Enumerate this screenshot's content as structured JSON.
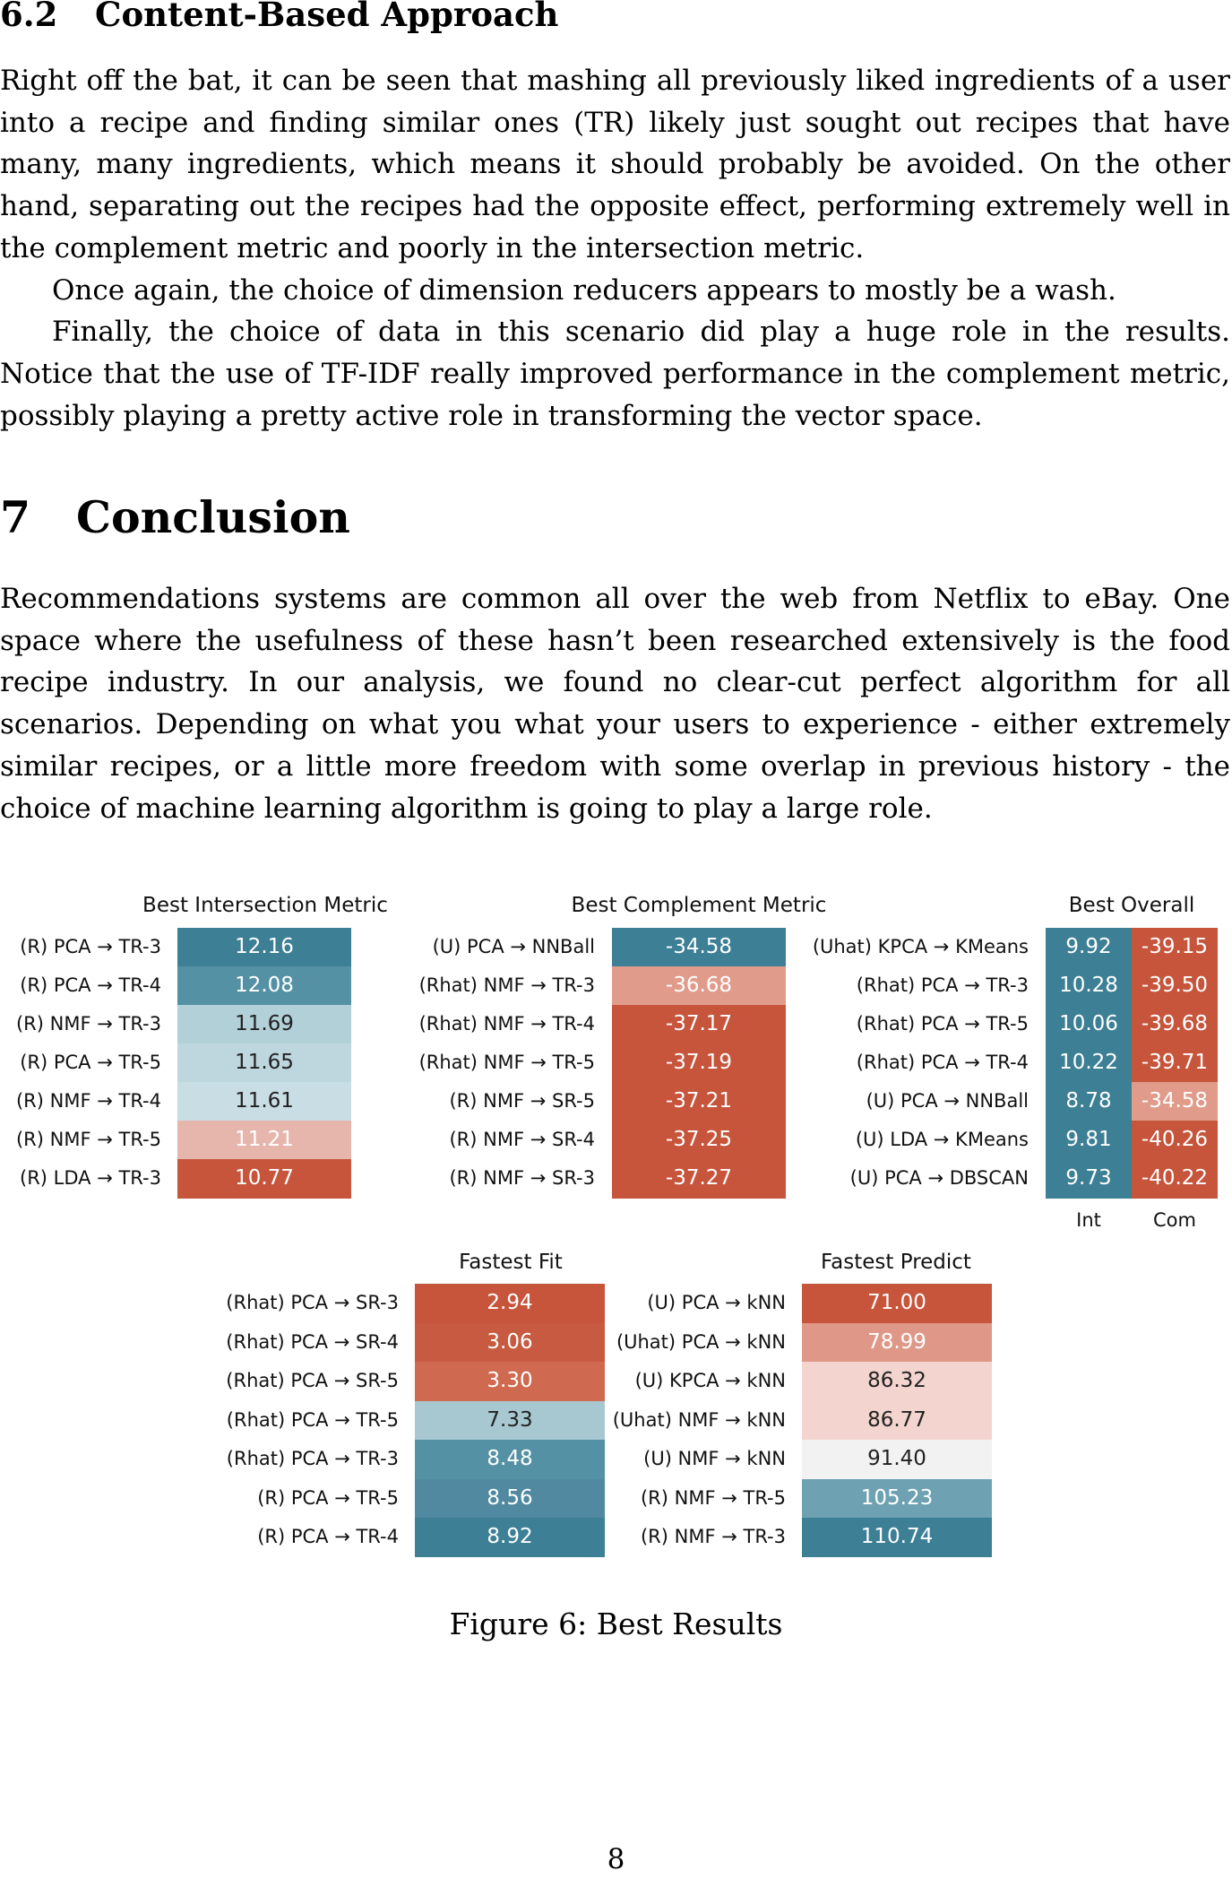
{
  "subsection": {
    "number": "6.2",
    "title": "Content-Based Approach"
  },
  "para1": "Right off the bat, it can be seen that mashing all previously liked ingredients of a user into a recipe and finding similar ones (TR) likely just sought out recipes that have many, many ingredients, which means it should probably be avoided. On the other hand, separating out the recipes had the opposite effect, performing extremely well in the complement metric and poorly in the intersection metric.",
  "para2": "Once again, the choice of dimension reducers appears to mostly be a wash.",
  "para3": "Finally, the choice of data in this scenario did play a huge role in the results. Notice that the use of TF-IDF really improved performance in the complement metric, possibly playing a pretty active role in transforming the vector space.",
  "section": {
    "number": "7",
    "title": "Conclusion"
  },
  "conclusion": "Recommendations systems are common all over the web from Netflix to eBay. One space where the usefulness of these hasn’t been researched extensively is the food recipe industry. In our analysis, we found no clear-cut perfect algorithm for all scenarios. Depending on what you what your users to experience - either extremely similar recipes, or a little more freedom with some overlap in previous history - the choice of machine learning algorithm is going to play a large role.",
  "chart_data": [
    {
      "type": "heatmap",
      "title": "Best Intersection Metric",
      "rows": [
        "(R) PCA → TR-3",
        "(R) PCA → TR-4",
        "(R) NMF → TR-3",
        "(R) PCA → TR-5",
        "(R) NMF → TR-4",
        "(R) NMF → TR-5",
        "(R) LDA → TR-3"
      ],
      "values": [
        "12.16",
        "12.08",
        "11.69",
        "11.65",
        "11.61",
        "11.21",
        "10.77"
      ],
      "colors": [
        "#3d7f95",
        "#5491a4",
        "#b2d0d8",
        "#bed7de",
        "#c8dee4",
        "#e6b6ad",
        "#c6553c"
      ],
      "text_colors": [
        "#ffffff",
        "#ffffff",
        "#222222",
        "#222222",
        "#222222",
        "#ffffff",
        "#ffffff"
      ]
    },
    {
      "type": "heatmap",
      "title": "Best Complement Metric",
      "rows": [
        "(U) PCA → NNBall",
        "(Rhat) NMF → TR-3",
        "(Rhat) NMF → TR-4",
        "(Rhat) NMF → TR-5",
        "(R) NMF → SR-5",
        "(R) NMF → SR-4",
        "(R) NMF → SR-3"
      ],
      "values": [
        "-34.58",
        "-36.68",
        "-37.17",
        "-37.19",
        "-37.21",
        "-37.25",
        "-37.27"
      ],
      "colors": [
        "#3d7f95",
        "#e09b8b",
        "#c6553c",
        "#c6553c",
        "#c6553c",
        "#c6553c",
        "#c6553c"
      ],
      "text_colors": [
        "#ffffff",
        "#ffffff",
        "#ffffff",
        "#ffffff",
        "#ffffff",
        "#ffffff",
        "#ffffff"
      ]
    },
    {
      "type": "heatmap",
      "title": "Best Overall",
      "rows": [
        "(Uhat) KPCA → KMeans",
        "(Rhat) PCA → TR-3",
        "(Rhat) PCA → TR-5",
        "(Rhat) PCA → TR-4",
        "(U) PCA → NNBall",
        "(U) LDA → KMeans",
        "(U) PCA → DBSCAN"
      ],
      "columns": [
        "Int",
        "Com"
      ],
      "values": [
        [
          "9.92",
          "-39.15"
        ],
        [
          "10.28",
          "-39.50"
        ],
        [
          "10.06",
          "-39.68"
        ],
        [
          "10.22",
          "-39.71"
        ],
        [
          "8.78",
          "-34.58"
        ],
        [
          "9.81",
          "-40.26"
        ],
        [
          "9.73",
          "-40.22"
        ]
      ],
      "colors": [
        [
          "#3d7f95",
          "#c6553c"
        ],
        [
          "#3d7f95",
          "#c6553c"
        ],
        [
          "#3d7f95",
          "#c6553c"
        ],
        [
          "#3d7f95",
          "#c6553c"
        ],
        [
          "#3d7f95",
          "#e09b8b"
        ],
        [
          "#3d7f95",
          "#c6553c"
        ],
        [
          "#3d7f95",
          "#c6553c"
        ]
      ],
      "text_colors": "#ffffff"
    },
    {
      "type": "heatmap",
      "title": "Fastest Fit",
      "rows": [
        "(Rhat) PCA → SR-3",
        "(Rhat) PCA → SR-4",
        "(Rhat) PCA → SR-5",
        "(Rhat) PCA → TR-5",
        "(Rhat) PCA → TR-3",
        "(R) PCA → TR-5",
        "(R) PCA → TR-4"
      ],
      "values": [
        "2.94",
        "3.06",
        "3.30",
        "7.33",
        "8.48",
        "8.56",
        "8.92"
      ],
      "colors": [
        "#c6553c",
        "#c85a41",
        "#cf6a51",
        "#a7c8d1",
        "#5491a4",
        "#5089a0",
        "#3d7f95"
      ],
      "text_colors": [
        "#ffffff",
        "#ffffff",
        "#ffffff",
        "#222222",
        "#ffffff",
        "#ffffff",
        "#ffffff"
      ]
    },
    {
      "type": "heatmap",
      "title": "Fastest Predict",
      "rows": [
        "(U) PCA → kNN",
        "(Uhat) PCA → kNN",
        "(U) KPCA → kNN",
        "(Uhat) NMF → kNN",
        "(U) NMF → kNN",
        "(R) NMF → TR-5",
        "(R) NMF → TR-3"
      ],
      "values": [
        "71.00",
        "78.99",
        "86.32",
        "86.77",
        "91.40",
        "105.23",
        "110.74"
      ],
      "colors": [
        "#c6553c",
        "#df9887",
        "#f3d4ce",
        "#f3d4ce",
        "#f2f2f2",
        "#6ea1b2",
        "#3d7f95"
      ],
      "text_colors": [
        "#ffffff",
        "#ffffff",
        "#222222",
        "#222222",
        "#222222",
        "#ffffff",
        "#ffffff"
      ]
    }
  ],
  "caption": "Figure 6: Best Results",
  "page_number": "8"
}
